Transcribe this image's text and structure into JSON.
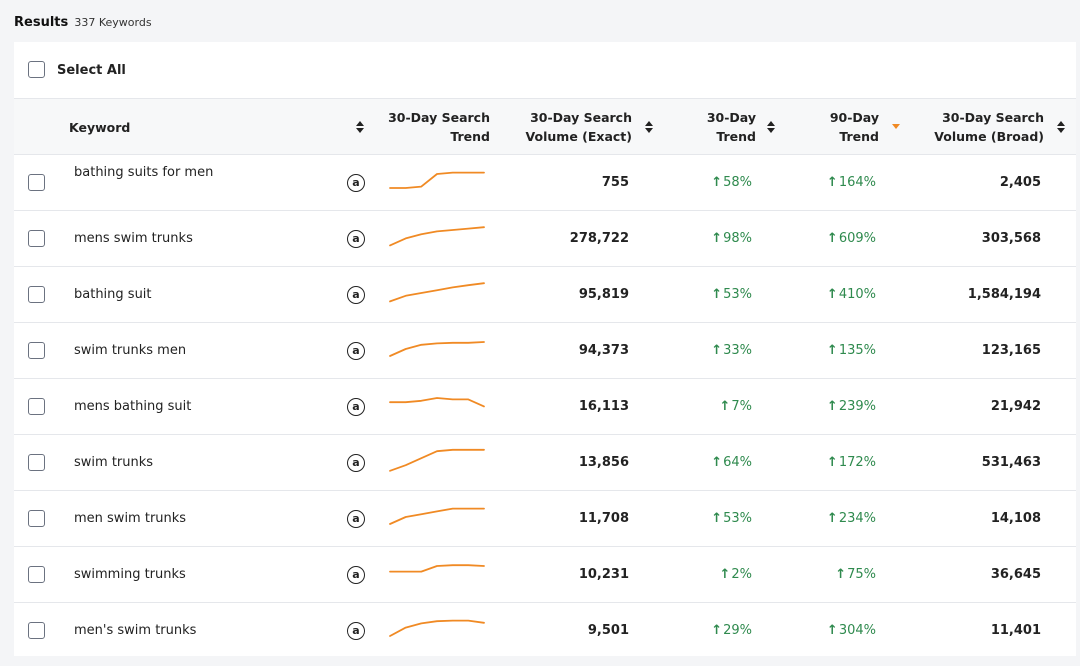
{
  "header": {
    "title": "Results",
    "count": "337 Keywords"
  },
  "select_all_label": "Select All",
  "columns": {
    "keyword": "Keyword",
    "search_trend_l1": "30-Day Search",
    "search_trend_l2": "Trend",
    "volume_exact_l1": "30-Day Search",
    "volume_exact_l2": "Volume (Exact)",
    "trend30_l1": "30-Day",
    "trend30_l2": "Trend",
    "trend90_l1": "90-Day",
    "trend90_l2": "Trend",
    "volume_broad_l1": "30-Day Search",
    "volume_broad_l2": "Volume (Broad)"
  },
  "amazon_icon_glyph": "a",
  "colors": {
    "trend_up": "#2f8a4e",
    "sparkline": "#f08a24",
    "sort_active": "#f08a24"
  },
  "rows": [
    {
      "keyword": "bathing suits for men",
      "exact": "755",
      "trend30": "58%",
      "trend90": "164%",
      "broad": "2,405",
      "spark": [
        0.25,
        0.25,
        0.3,
        0.75,
        0.8,
        0.8,
        0.8
      ]
    },
    {
      "keyword": "mens swim trunks",
      "exact": "278,722",
      "trend30": "98%",
      "trend90": "609%",
      "broad": "303,568",
      "spark": [
        0.2,
        0.45,
        0.6,
        0.7,
        0.75,
        0.8,
        0.85
      ]
    },
    {
      "keyword": "bathing suit",
      "exact": "95,819",
      "trend30": "53%",
      "trend90": "410%",
      "broad": "1,584,194",
      "spark": [
        0.2,
        0.4,
        0.5,
        0.6,
        0.7,
        0.78,
        0.85
      ]
    },
    {
      "keyword": "swim trunks men",
      "exact": "94,373",
      "trend30": "33%",
      "trend90": "135%",
      "broad": "123,165",
      "spark": [
        0.25,
        0.5,
        0.65,
        0.7,
        0.72,
        0.72,
        0.75
      ]
    },
    {
      "keyword": "mens bathing suit",
      "exact": "16,113",
      "trend30": "7%",
      "trend90": "239%",
      "broad": "21,942",
      "spark": [
        0.6,
        0.6,
        0.65,
        0.75,
        0.7,
        0.7,
        0.45
      ]
    },
    {
      "keyword": "swim trunks",
      "exact": "13,856",
      "trend30": "64%",
      "trend90": "172%",
      "broad": "531,463",
      "spark": [
        0.15,
        0.35,
        0.6,
        0.85,
        0.9,
        0.9,
        0.9
      ]
    },
    {
      "keyword": "men swim trunks",
      "exact": "11,708",
      "trend30": "53%",
      "trend90": "234%",
      "broad": "14,108",
      "spark": [
        0.25,
        0.5,
        0.6,
        0.7,
        0.8,
        0.8,
        0.8
      ]
    },
    {
      "keyword": "swimming trunks",
      "exact": "10,231",
      "trend30": "2%",
      "trend90": "75%",
      "broad": "36,645",
      "spark": [
        0.55,
        0.55,
        0.55,
        0.75,
        0.78,
        0.78,
        0.75
      ]
    },
    {
      "keyword": "men's swim trunks",
      "exact": "9,501",
      "trend30": "29%",
      "trend90": "304%",
      "broad": "11,401",
      "spark": [
        0.25,
        0.55,
        0.7,
        0.78,
        0.8,
        0.8,
        0.72
      ]
    }
  ]
}
